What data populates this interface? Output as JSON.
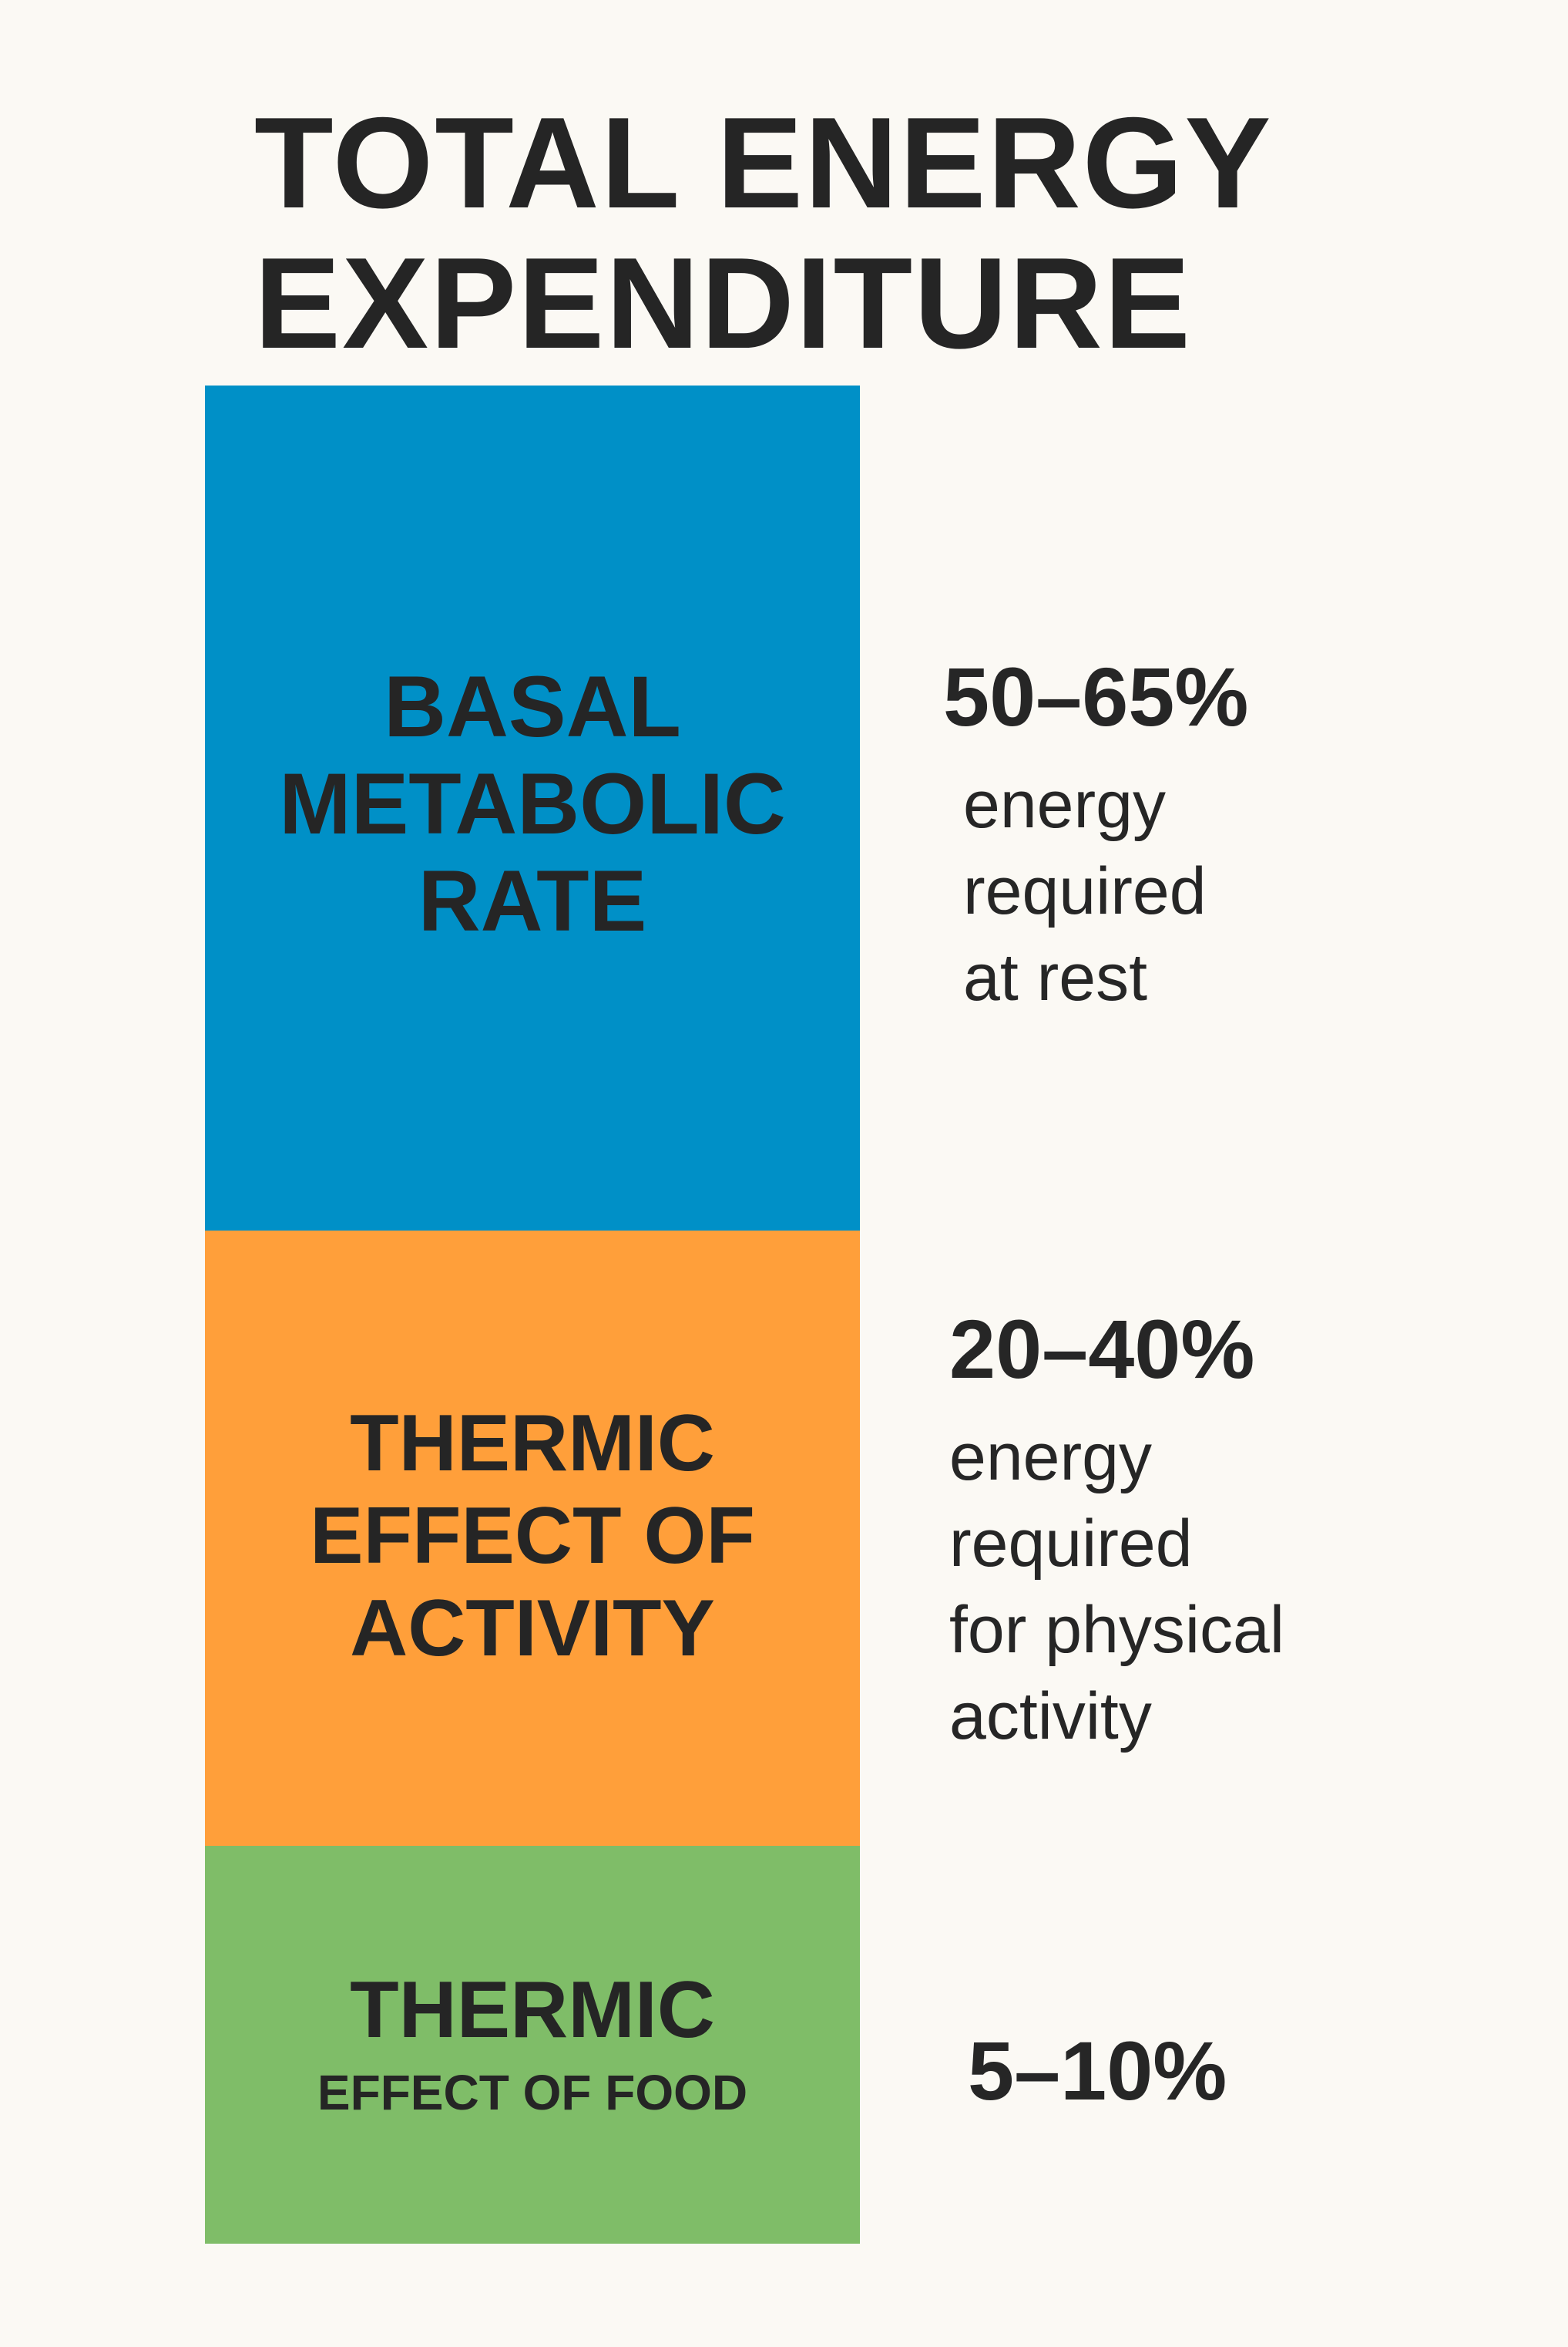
{
  "title": {
    "line1": "TOTAL ENERGY",
    "line2": "EXPENDITURE"
  },
  "segments": [
    {
      "label_lines": [
        "BASAL",
        "METABOLIC",
        "RATE"
      ],
      "percentage": "50–65%",
      "description": "energy\nrequired\nat rest",
      "share": {
        "min": 50,
        "max": 65
      },
      "color": "#0090c7"
    },
    {
      "label_lines": [
        "THERMIC",
        "EFFECT OF",
        "ACTIVITY"
      ],
      "percentage": "20–40%",
      "description": "energy\nrequired\nfor physical\nactivity",
      "share": {
        "min": 20,
        "max": 40
      },
      "color": "#ff9f3a"
    },
    {
      "label_lines": [
        "THERMIC",
        "EFFECT OF FOOD"
      ],
      "percentage": "5–10%",
      "description": "",
      "share": {
        "min": 5,
        "max": 10
      },
      "color": "#7fbd68"
    }
  ]
}
